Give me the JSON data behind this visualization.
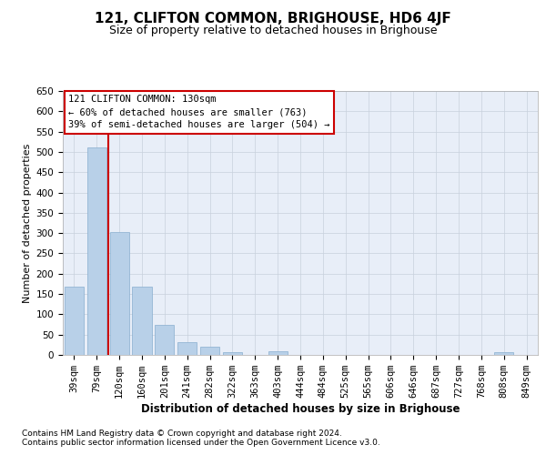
{
  "title": "121, CLIFTON COMMON, BRIGHOUSE, HD6 4JF",
  "subtitle": "Size of property relative to detached houses in Brighouse",
  "xlabel": "Distribution of detached houses by size in Brighouse",
  "ylabel": "Number of detached properties",
  "footnote1": "Contains HM Land Registry data © Crown copyright and database right 2024.",
  "footnote2": "Contains public sector information licensed under the Open Government Licence v3.0.",
  "categories": [
    "39sqm",
    "79sqm",
    "120sqm",
    "160sqm",
    "201sqm",
    "241sqm",
    "282sqm",
    "322sqm",
    "363sqm",
    "403sqm",
    "444sqm",
    "484sqm",
    "525sqm",
    "565sqm",
    "606sqm",
    "646sqm",
    "687sqm",
    "727sqm",
    "768sqm",
    "808sqm",
    "849sqm"
  ],
  "values": [
    167,
    512,
    302,
    169,
    75,
    31,
    20,
    7,
    0,
    8,
    0,
    0,
    0,
    0,
    0,
    0,
    0,
    0,
    0,
    7,
    0
  ],
  "bar_color": "#b8d0e8",
  "bar_edge_color": "#88aece",
  "background_color": "#e8eef8",
  "grid_color": "#c8d0dc",
  "vline_x": 1.5,
  "annotation_line1": "121 CLIFTON COMMON: 130sqm",
  "annotation_line2": "← 60% of detached houses are smaller (763)",
  "annotation_line3": "39% of semi-detached houses are larger (504) →",
  "annotation_box_facecolor": "#ffffff",
  "annotation_box_edgecolor": "#cc0000",
  "vline_color": "#cc0000",
  "ylim_max": 650,
  "yticks": [
    0,
    50,
    100,
    150,
    200,
    250,
    300,
    350,
    400,
    450,
    500,
    550,
    600,
    650
  ],
  "title_fontsize": 11,
  "subtitle_fontsize": 9,
  "ylabel_fontsize": 8,
  "xlabel_fontsize": 8.5,
  "tick_fontsize": 7.5,
  "annotation_fontsize": 7.5,
  "footnote_fontsize": 6.5
}
